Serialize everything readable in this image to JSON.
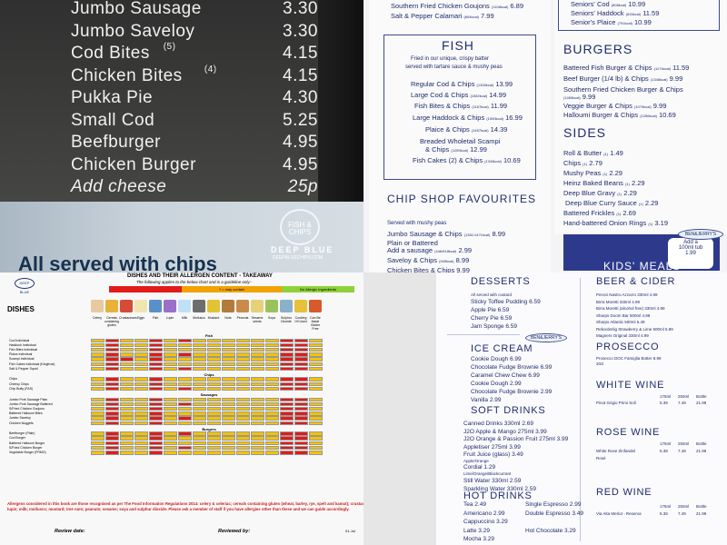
{
  "q1": {
    "items": [
      {
        "name": "Jumbo Sausage",
        "price": "3.30"
      },
      {
        "name": "Jumbo Saveloy",
        "price": "3.30"
      },
      {
        "name": "Cod Bites",
        "sup": "(5)",
        "price": "4.15"
      },
      {
        "name": "Chicken Bites",
        "sup": "(4)",
        "price": "4.15"
      },
      {
        "name": "Pukka Pie",
        "price": "4.30"
      },
      {
        "name": "Small Cod",
        "price": "5.25"
      },
      {
        "name": "Beefburger",
        "price": "4.95"
      },
      {
        "name": "Chicken Burger",
        "price": "4.95"
      },
      {
        "name": "Add cheese",
        "price": "25p"
      }
    ],
    "slogan": "All served with chips",
    "logo_text": "FISH & CHIPS",
    "brand": "DEEP BLUE",
    "url": "DEEPBLUECHIPS.COM"
  },
  "q2": {
    "top_left": [
      {
        "name": "Southern Fried Chicken Goujons",
        "cal": "(1108kcal)",
        "price": "6.89"
      },
      {
        "name": "Salt & Pepper Calamari",
        "cal": "(804kcal)",
        "price": "7.99"
      }
    ],
    "top_right": [
      {
        "name": "Seniors' Cod",
        "cal": "(808kcal)",
        "price": "10.99"
      },
      {
        "name": "Seniors' Haddock",
        "cal": "(815kcal)",
        "price": "11.59"
      },
      {
        "name": "Senior's Plaice",
        "cal": "(791kcal)",
        "price": "10.99"
      }
    ],
    "fish_heading": "FISH",
    "fish_intro": [
      "Fried in our unique, crispy batter",
      "served with tartare sauce & mushy peas"
    ],
    "fish": [
      {
        "name": "Regular Cod & Chips",
        "cal": "(1328kcal)",
        "price": "13.99"
      },
      {
        "name": "Large Cod & Chips",
        "cal": "(1582kcal)",
        "price": "14.99"
      },
      {
        "name": "Fish Bites & Chips",
        "cal": "(1167kcal)",
        "price": "11.99"
      },
      {
        "name": "Large Haddock & Chips",
        "cal": "(1590kcal)",
        "price": "16.99"
      },
      {
        "name": "Plaice & Chips",
        "cal": "(1457kcal)",
        "price": "14.39"
      },
      {
        "name": "Breaded Wholetail Scampi",
        "cal": "",
        "price": ""
      },
      {
        "name": "& Chips",
        "cal": "(1259kcal)",
        "price": "12.99"
      },
      {
        "name": "Fish Cakes (2) & Chips",
        "cal": "(1345kcal)",
        "price": "10.69"
      }
    ],
    "fav_heading": "CHIP SHOP FAVOURITES",
    "fav_intro": "Served with mushy peas",
    "fav": [
      {
        "name": "Jumbo Sausage & Chips",
        "cal": "(1351/1471kcal)",
        "price": "8.99"
      },
      {
        "name": "Plain or Battered",
        "cal": "",
        "price": ""
      },
      {
        "name": "Add a sausage",
        "cal": "(446/618kcal)",
        "price": "2.99"
      },
      {
        "name": "Saveloy & Chips",
        "cal": "(949kcal)",
        "price": "8.99"
      },
      {
        "name": "Chicken Bites & Chips",
        "cal": "",
        "price": "9.99"
      }
    ],
    "burgers_heading": "BURGERS",
    "burgers": [
      {
        "name": "Battered Fish Burger & Chips",
        "cal": "(1174kcal)",
        "price": "11.59"
      },
      {
        "name": "Beef Burger (1/4 lb) & Chips",
        "cal": "(1348kcal)",
        "price": "9.99"
      },
      {
        "name": "Southern Fried Chicken Burger & Chips",
        "cal": "",
        "price": ""
      },
      {
        "name": "",
        "cal": "(1469kcal)",
        "price": "9.99"
      },
      {
        "name": "Veggie Burger & Chips",
        "cal": "(1079kcal)",
        "price": "9.99"
      },
      {
        "name": "Halloumi Burger & Chips",
        "cal": "(1256kcal)",
        "price": "10.69"
      }
    ],
    "sides_heading": "SIDES",
    "sides": [
      {
        "name": "Roll & Butter",
        "cal": "(1)",
        "price": "1.49"
      },
      {
        "name": "Chips",
        "cal": "(1)",
        "price": "2.79"
      },
      {
        "name": "Mushy Peas",
        "cal": "(1)",
        "price": "2.29"
      },
      {
        "name": "Heinz Baked Beans",
        "cal": "(1)",
        "price": "2.29"
      },
      {
        "name": "Deep Blue Gravy",
        "cal": "(1)",
        "price": "2.29"
      },
      {
        "name": "Deep Blue Curry Sauce",
        "cal": "(1)",
        "price": "2.29"
      },
      {
        "name": "Battered Frickles",
        "cal": "(1)",
        "price": "2.69"
      },
      {
        "name": "Hand-battered Onion Rings",
        "cal": "(1)",
        "price": "3.19"
      }
    ],
    "kids": "KIDS' MEALS",
    "bubble": [
      "Add a",
      "100ml tub",
      "1.99"
    ],
    "bj_logo": "BEN&JERRY'S"
  },
  "q3": {
    "title": "DISHES AND THEIR ALLERGEN CONTENT - TAKEAWAY",
    "subtitle": "The following applies to the below chart and is a guideline only:-",
    "legend": [
      "",
      "? = may contain",
      "No Allergic Ingredients"
    ],
    "logo": "DEEP BLUE",
    "dishes_label": "DISHES",
    "columns": [
      "Celery",
      "Cereals containing gluten",
      "Crustaceans",
      "Eggs",
      "Fish",
      "Lupin",
      "Milk",
      "Molluscs",
      "Mustard",
      "Nuts",
      "Peanuts",
      "Sesame seeds",
      "Soya",
      "Sulphur Dioxide",
      "Cooking Oil Used",
      "Can Be Made Gluten Free"
    ],
    "sections": [
      {
        "title": "Fish",
        "rows": [
          "Cod Individual",
          "Haddock Individual",
          "Fish Bites Individual",
          "Plaice Individual",
          "Scampi Individual",
          "Fish Cakes Individual (Kingfrost)",
          "Salt & Pepper Squid"
        ]
      },
      {
        "title": "Chips",
        "rows": [
          "Chips",
          "Cheesy Chips",
          "Chip Butty (FAS)"
        ]
      },
      {
        "title": "Sausages",
        "rows": [
          "Jumbo Pork Sausage Plain",
          "Jumbo Pork Sausage Battered",
          "S/Fried Chicken Goujons",
          "Battered Halloumi Bites",
          "Jumbo Saveloy",
          "Chicken Nuggets"
        ]
      },
      {
        "title": "Burgers",
        "rows": [
          "Beefburger (Plain)",
          "Cod Burger",
          "Battered Halloumi Burger",
          "S/Fried Chicken Burger",
          "Vegetable Burger (FRMO)"
        ]
      }
    ],
    "note": "Allergens considered in this book are those recognised as per The Food Information Regulations 2014: celery & celeriac; cereals containing gluten (wheat, barley, rye, spelt and kamut); crustaceans; eggs; fish; lupin; milk; molluscs; mustard; tree nuts; peanuts; sesame; soya and sulphur dioxide. Please ask a member of staff if you have allergies other than these and we can guide accordingly.",
    "review": "Review date:",
    "reviewed": "Reviewed by:",
    "date": "01-Jul"
  },
  "q4": {
    "desserts_heading": "DESSERTS",
    "desserts_intro": "All served with custard",
    "desserts": [
      {
        "name": "Sticky Toffee Pudding",
        "price": "6.59"
      },
      {
        "name": "Apple Pie",
        "price": "6.59"
      },
      {
        "name": "Cherry Pie",
        "price": "6.59"
      },
      {
        "name": "Jam Sponge",
        "price": "6.59"
      }
    ],
    "icecream_heading": "ICE CREAM",
    "bj": "BEN&JERRY'S",
    "icecream": [
      {
        "name": "Cookie Dough",
        "price": "6.99"
      },
      {
        "name": "Chocolate Fudge Brownie",
        "price": "6.99"
      },
      {
        "name": "Caramel Chew Chew",
        "price": "6.99"
      },
      {
        "name": "Cookie Dough",
        "price": "2.99"
      },
      {
        "name": "Chocolate Fudge Brownie",
        "price": "2.99"
      },
      {
        "name": "Vanilla",
        "price": "2.99"
      }
    ],
    "soft_heading": "SOFT DRINKS",
    "soft": [
      {
        "name": "Canned Drinks 330ml",
        "price": "2.69"
      },
      {
        "name": "J2O Apple & Mango 275ml",
        "price": "3.99"
      },
      {
        "name": "J2O Orange & Passion Fruit 275ml",
        "price": "3.99"
      },
      {
        "name": "Appletiser 275ml",
        "price": "3.99"
      },
      {
        "name": "Fruit Juice (glass)",
        "price": "3.49"
      },
      {
        "name": "Apple/Orange",
        "price": ""
      },
      {
        "name": "Cordial",
        "price": "1.29"
      },
      {
        "name": "Lime/Orange/Blackcurrant",
        "price": ""
      },
      {
        "name": "Still Water 330ml",
        "price": "2.59"
      },
      {
        "name": "Sparkling Water 330ml",
        "price": "2.59"
      }
    ],
    "hot_heading": "HOT DRINKS",
    "hot_left": [
      {
        "name": "Tea",
        "price": "2.49"
      },
      {
        "name": "Americano",
        "price": "2.99"
      },
      {
        "name": "Cappuccino",
        "price": "3.29"
      },
      {
        "name": "Latte",
        "price": "3.29"
      },
      {
        "name": "Mocha",
        "price": "3.29"
      }
    ],
    "hot_right": [
      {
        "name": "Single Espresso",
        "price": "2.99"
      },
      {
        "name": "Double Espresso",
        "price": "3.49"
      },
      {
        "name": "",
        "price": ""
      },
      {
        "name": "Hot Chocolate",
        "price": "3.29"
      }
    ],
    "beer_heading": "BEER & CIDER",
    "beer": [
      {
        "name": "Peroni Nastro Azzurro 330ml",
        "price": "4.99"
      },
      {
        "name": "Birra Moretti 330ml",
        "price": "4.99"
      },
      {
        "name": "Birra Moretti (alcohol free) 330ml",
        "price": "4.99"
      },
      {
        "name": "Sharps Doom Bar 500ml",
        "price": "4.99"
      },
      {
        "name": "Sharps Atlantic 500ml",
        "price": "5.49"
      },
      {
        "name": "Rekorderlig Strawberry & Lime 500ml",
        "price": "5.99"
      },
      {
        "name": "Magners Original 330ml",
        "price": "4.99"
      }
    ],
    "prosecco_heading": "PROSECCO",
    "prosecco": [
      {
        "name": "Prosecco DOC Famiglia Botter",
        "price": "8.99"
      },
      {
        "name": "20cl",
        "price": ""
      }
    ],
    "white_heading": "WHITE WINE",
    "sizes": [
      "175ml",
      "250ml",
      "Bottle"
    ],
    "white": {
      "name": "Pinot Grigio Primi Soli",
      "prices": [
        "5.39",
        "7.49",
        "21.99"
      ]
    },
    "rose_heading": "ROSE WINE",
    "rose": {
      "name": "White Rose Zinfandel",
      "name2": "Rosé",
      "prices": [
        "5.39",
        "7.49",
        "21.99"
      ]
    },
    "red_heading": "RED WINE",
    "red": {
      "name": "Via Alta Merlot - Reserva",
      "prices": [
        "5.39",
        "7.49",
        "21.99"
      ]
    }
  }
}
